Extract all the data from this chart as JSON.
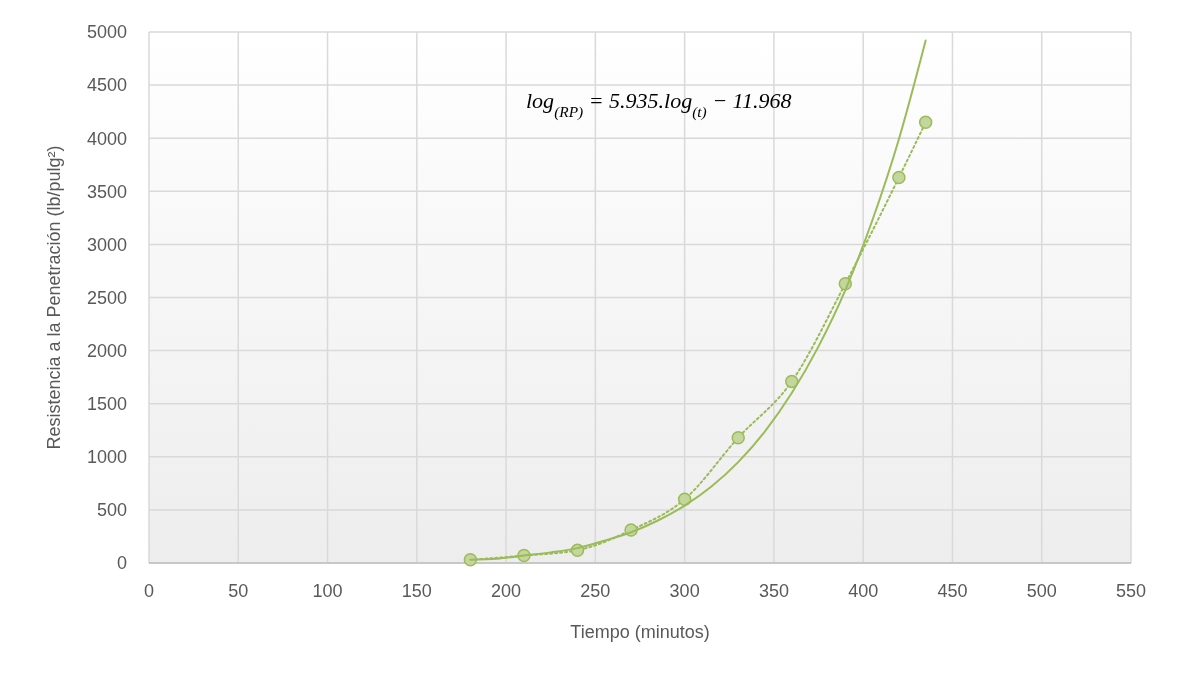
{
  "chart_data": {
    "type": "line",
    "xlabel": "Tiempo (minutos)",
    "ylabel": "Resistencia a la Penetración (lb/pulg²)",
    "xlim": [
      0,
      550
    ],
    "xticks": [
      0,
      50,
      100,
      150,
      200,
      250,
      300,
      350,
      400,
      450,
      500,
      550
    ],
    "ylim": [
      0,
      5000
    ],
    "yticks": [
      0,
      500,
      1000,
      1500,
      2000,
      2500,
      3000,
      3500,
      4000,
      4500,
      5000
    ],
    "grid": true,
    "annotations": [
      "log$_{(RP)}$ = 5.935.log$_{(t)}$ − 11.968"
    ],
    "series": [
      {
        "color": "#9bbb59",
        "marker": "circle",
        "line_style": "dotted",
        "x": [
          180,
          210,
          240,
          270,
          300,
          330,
          360,
          390,
          420,
          435
        ],
        "values": [
          30,
          70,
          120,
          310,
          600,
          1180,
          1710,
          2630,
          3630,
          4150
        ]
      },
      {
        "color": "#9bbb59",
        "marker": "none",
        "line_style": "solid",
        "x": [
          180,
          195,
          210,
          225,
          240,
          255,
          270,
          285,
          300,
          315,
          330,
          345,
          360,
          375,
          390,
          405,
          420,
          435
        ],
        "values": [
          30,
          40,
          70,
          100,
          140,
          210,
          290,
          400,
          540,
          720,
          950,
          1240,
          1600,
          2040,
          2570,
          3220,
          3990,
          4920
        ]
      }
    ]
  }
}
